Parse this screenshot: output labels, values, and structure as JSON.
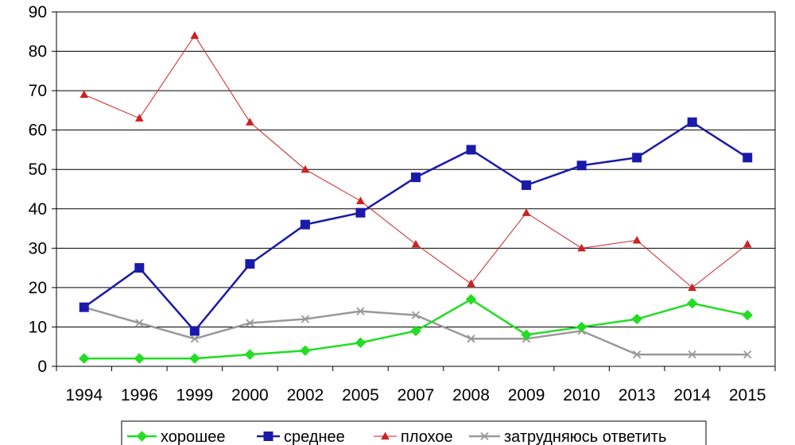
{
  "chart_data": {
    "type": "line",
    "title": "",
    "xlabel": "",
    "ylabel": "",
    "categories": [
      "1994",
      "1996",
      "1999",
      "2000",
      "2002",
      "2005",
      "2007",
      "2008",
      "2009",
      "2010",
      "2013",
      "2014",
      "2015"
    ],
    "ylim": [
      0,
      90
    ],
    "yticks": [
      "0",
      "10",
      "20",
      "30",
      "40",
      "50",
      "60",
      "70",
      "80",
      "90"
    ],
    "grid": true,
    "legend_position": "bottom",
    "series": [
      {
        "name": "хорошее",
        "color": "#22dd22",
        "marker": "diamond",
        "values": [
          2,
          2,
          2,
          3,
          4,
          6,
          9,
          17,
          8,
          10,
          12,
          16,
          13
        ]
      },
      {
        "name": "среднее",
        "color": "#1a1aaa",
        "marker": "square",
        "values": [
          15,
          25,
          9,
          26,
          36,
          39,
          48,
          55,
          46,
          51,
          53,
          62,
          53
        ]
      },
      {
        "name": "плохое",
        "color": "#cc2222",
        "marker": "triangle",
        "values": [
          69,
          63,
          84,
          62,
          50,
          42,
          31,
          21,
          39,
          30,
          32,
          20,
          31
        ]
      },
      {
        "name": "затрудняюсь ответить",
        "color": "#999999",
        "marker": "cross",
        "values": [
          15,
          11,
          7,
          11,
          12,
          14,
          13,
          7,
          7,
          9,
          3,
          3,
          3
        ]
      }
    ]
  }
}
